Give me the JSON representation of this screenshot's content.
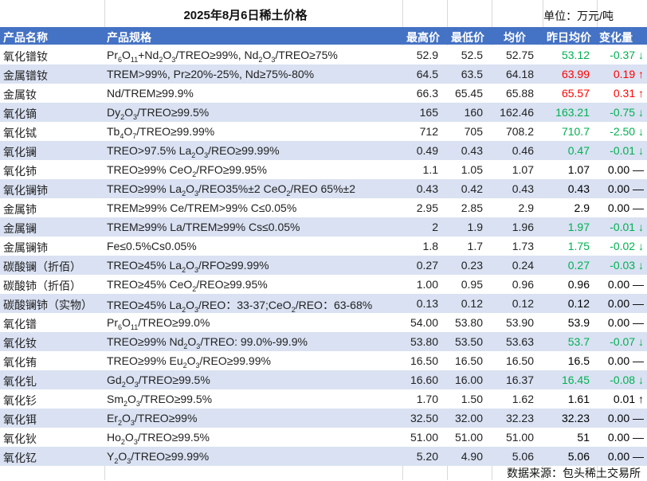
{
  "title": "2025年8月6日稀土价格",
  "unit": "单位：万元/吨",
  "colors": {
    "up": "#ff0000",
    "down": "#00b050",
    "flat": "#000000",
    "header": "#4472c4",
    "stripe": "#d9e1f2"
  },
  "headers": {
    "name": "产品名称",
    "spec": "产品规格",
    "high": "最高价",
    "low": "最低价",
    "avg": "均价",
    "prev": "昨日均价",
    "change": "变化量"
  },
  "rows": [
    {
      "name": "氧化镨钕",
      "spec": "Pr<sub>6</sub>O<sub>11</sub>+Nd<sub>2</sub>O<sub>3</sub>/TREO≥99%, Nd<sub>2</sub>O<sub>3</sub>/TREO≥75%",
      "high": "52.9",
      "low": "52.5",
      "avg": "52.75",
      "prev": "53.12",
      "change": "-0.37 ↓",
      "trend": "down"
    },
    {
      "name": "金属镨钕",
      "spec": "TREM>99%, Pr≥20%-25%, Nd≥75%-80%",
      "high": "64.5",
      "low": "63.5",
      "avg": "64.18",
      "prev": "63.99",
      "change": "0.19 ↑",
      "trend": "up"
    },
    {
      "name": "金属钕",
      "spec": "Nd/TREM≥99.9%",
      "high": "66.3",
      "low": "65.45",
      "avg": "65.88",
      "prev": "65.57",
      "change": "0.31 ↑",
      "trend": "up"
    },
    {
      "name": "氧化镝",
      "spec": "Dy<sub>2</sub>O<sub>3</sub>/TREO≥99.5%",
      "high": "165",
      "low": "160",
      "avg": "162.46",
      "prev": "163.21",
      "change": "-0.75 ↓",
      "trend": "down"
    },
    {
      "name": "氧化铽",
      "spec": "Tb<sub>4</sub>O<sub>7</sub>/TREO≥99.99%",
      "high": "712",
      "low": "705",
      "avg": "708.2",
      "prev": "710.7",
      "change": "-2.50 ↓",
      "trend": "down"
    },
    {
      "name": "氧化镧",
      "spec": "TREO>97.5% La<sub>2</sub>O<sub>3</sub>/REO≥99.99%",
      "high": "0.49",
      "low": "0.43",
      "avg": "0.46",
      "prev": "0.47",
      "change": "-0.01 ↓",
      "trend": "down"
    },
    {
      "name": "氧化铈",
      "spec": "TREO≥99% CeO<sub>2</sub>/RFO≥99.95%",
      "high": "1.1",
      "low": "1.05",
      "avg": "1.07",
      "prev": "1.07",
      "change": "0.00 —",
      "trend": "flat"
    },
    {
      "name": "氧化镧铈",
      "spec": "TREO≥99% La<sub>2</sub>O<sub>3</sub>/REO35%±2 CeO<sub>2</sub>/REO 65%±2",
      "high": "0.43",
      "low": "0.42",
      "avg": "0.43",
      "prev": "0.43",
      "change": "0.00 —",
      "trend": "flat"
    },
    {
      "name": "金属铈",
      "spec": "TREM≥99% Ce/TREM>99% C≤0.05%",
      "high": "2.95",
      "low": "2.85",
      "avg": "2.9",
      "prev": "2.9",
      "change": "0.00 —",
      "trend": "flat"
    },
    {
      "name": "金属镧",
      "spec": "TREM≥99% La/TREM≥99% Cs≤0.05%",
      "high": "2",
      "low": "1.9",
      "avg": "1.96",
      "prev": "1.97",
      "change": "-0.01 ↓",
      "trend": "down"
    },
    {
      "name": "金属镧铈",
      "spec": "Fe≤0.5%Cs0.05%",
      "high": "1.8",
      "low": "1.7",
      "avg": "1.73",
      "prev": "1.75",
      "change": "-0.02 ↓",
      "trend": "down"
    },
    {
      "name": "碳酸镧（折佰）",
      "spec": "TREO≥45% La<sub>2</sub>O<sub>3</sub>/RFO≥99.99%",
      "high": "0.27",
      "low": "0.23",
      "avg": "0.24",
      "prev": "0.27",
      "change": "-0.03 ↓",
      "trend": "down"
    },
    {
      "name": "碳酸铈（折佰）",
      "spec": "TREO≥45% CeO<sub>2</sub>/REO≥99.95%",
      "high": "1.00",
      "low": "0.95",
      "avg": "0.96",
      "prev": "0.96",
      "change": "0.00 —",
      "trend": "flat"
    },
    {
      "name": "碳酸镧铈（实物）",
      "spec": "TREO≥45% La<sub>2</sub>O<sub>3</sub>/REO：33-37;CeO<sub>2</sub>/REO：63-68%",
      "high": "0.13",
      "low": "0.12",
      "avg": "0.12",
      "prev": "0.12",
      "change": "0.00 —",
      "trend": "flat"
    },
    {
      "name": "氧化镨",
      "spec": "Pr<sub>6</sub>O<sub>11</sub>/TREO≥99.0%",
      "high": "54.00",
      "low": "53.80",
      "avg": "53.90",
      "prev": "53.9",
      "change": "0.00 —",
      "trend": "flat"
    },
    {
      "name": "氧化钕",
      "spec": "TREO≥99% Nd<sub>2</sub>O<sub>3</sub>/TREO: 99.0%-99.9%",
      "high": "53.80",
      "low": "53.50",
      "avg": "53.63",
      "prev": "53.7",
      "change": "-0.07 ↓",
      "trend": "down"
    },
    {
      "name": "氧化铕",
      "spec": "TREO≥99% Eu<sub>2</sub>O<sub>3</sub>/REO≥99.99%",
      "high": "16.50",
      "low": "16.50",
      "avg": "16.50",
      "prev": "16.5",
      "change": "0.00 —",
      "trend": "flat"
    },
    {
      "name": "氧化钆",
      "spec": "Gd<sub>2</sub>O<sub>3</sub>/TREO≥99.5%",
      "high": "16.60",
      "low": "16.00",
      "avg": "16.37",
      "prev": "16.45",
      "change": "-0.08 ↓",
      "trend": "down"
    },
    {
      "name": "氧化钐",
      "spec": "Sm<sub>2</sub>O<sub>3</sub>/TREO≥99.5%",
      "high": "1.70",
      "low": "1.50",
      "avg": "1.62",
      "prev": "1.61",
      "change": "0.01 ↑",
      "trend": "up-black"
    },
    {
      "name": "氧化铒",
      "spec": "Er<sub>2</sub>O<sub>3</sub>/TREO≥99%",
      "high": "32.50",
      "low": "32.00",
      "avg": "32.23",
      "prev": "32.23",
      "change": "0.00 —",
      "trend": "flat"
    },
    {
      "name": "氧化钬",
      "spec": "Ho<sub>2</sub>O<sub>3</sub>/TREO≥99.5%",
      "high": "51.00",
      "low": "51.00",
      "avg": "51.00",
      "prev": "51",
      "change": "0.00 —",
      "trend": "flat"
    },
    {
      "name": "氧化钇",
      "spec": "Y<sub>2</sub>O<sub>3</sub>/TREO≥99.99%",
      "high": "5.20",
      "low": "4.90",
      "avg": "5.06",
      "prev": "5.06",
      "change": "0.00 —",
      "trend": "flat"
    }
  ],
  "footer": "数据来源：包头稀土交易所"
}
